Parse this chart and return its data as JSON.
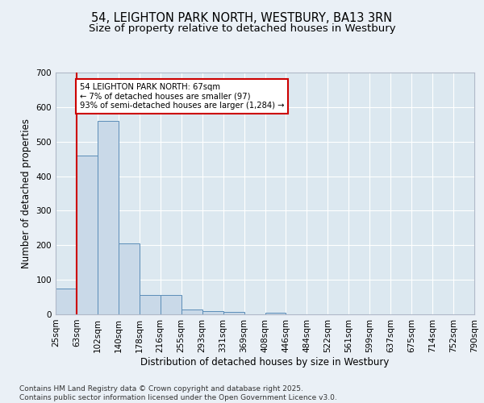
{
  "title_line1": "54, LEIGHTON PARK NORTH, WESTBURY, BA13 3RN",
  "title_line2": "Size of property relative to detached houses in Westbury",
  "xlabel": "Distribution of detached houses by size in Westbury",
  "ylabel": "Number of detached properties",
  "bins": [
    "25sqm",
    "63sqm",
    "102sqm",
    "140sqm",
    "178sqm",
    "216sqm",
    "255sqm",
    "293sqm",
    "331sqm",
    "369sqm",
    "408sqm",
    "446sqm",
    "484sqm",
    "522sqm",
    "561sqm",
    "599sqm",
    "637sqm",
    "675sqm",
    "714sqm",
    "752sqm",
    "790sqm"
  ],
  "bar_values": [
    75,
    460,
    560,
    205,
    55,
    55,
    15,
    10,
    8,
    0,
    5,
    0,
    0,
    0,
    0,
    0,
    0,
    0,
    0,
    0
  ],
  "bar_color": "#c9d9e8",
  "bar_edge_color": "#5b8db8",
  "ylim": [
    0,
    700
  ],
  "yticks": [
    0,
    100,
    200,
    300,
    400,
    500,
    600,
    700
  ],
  "property_line_x": 1,
  "property_line_color": "#cc0000",
  "annotation_text": "54 LEIGHTON PARK NORTH: 67sqm\n← 7% of detached houses are smaller (97)\n93% of semi-detached houses are larger (1,284) →",
  "annotation_box_color": "#cc0000",
  "footnote": "Contains HM Land Registry data © Crown copyright and database right 2025.\nContains public sector information licensed under the Open Government Licence v3.0.",
  "bg_color": "#eaf0f6",
  "plot_bg_color": "#dce8f0",
  "grid_color": "#ffffff",
  "title_fontsize": 10.5,
  "subtitle_fontsize": 9.5,
  "axis_label_fontsize": 8.5,
  "tick_fontsize": 7.5,
  "footnote_fontsize": 6.5
}
